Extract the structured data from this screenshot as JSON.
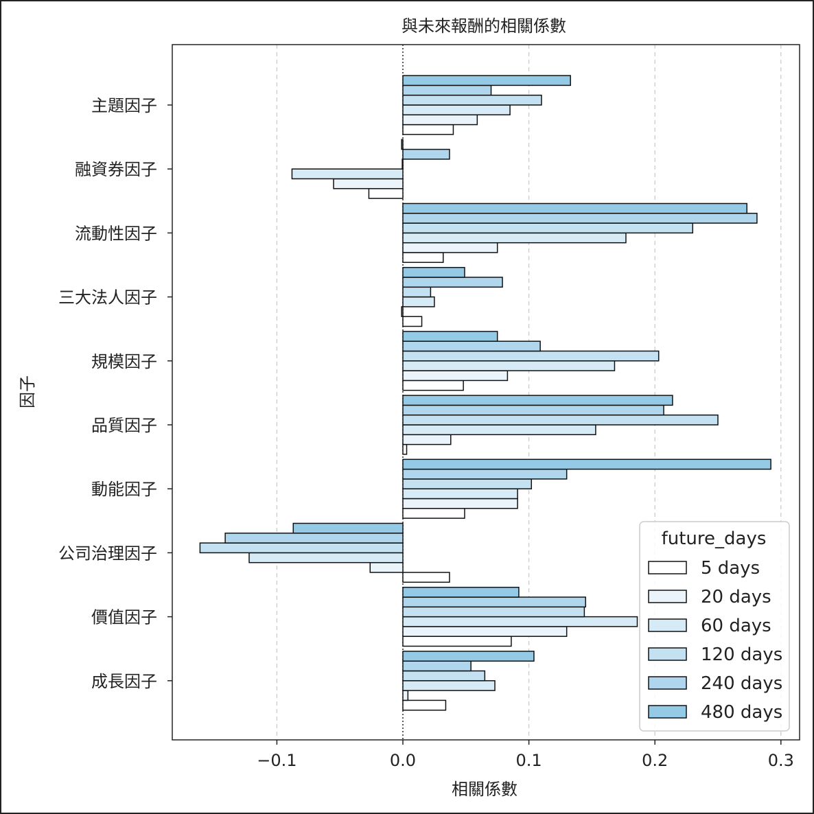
{
  "chart_data": {
    "type": "bar",
    "orientation": "horizontal",
    "title": "與未來報酬的相關係數",
    "xlabel": "相關係數",
    "ylabel": "因子",
    "xlim": [
      -0.2,
      0.315
    ],
    "xticks": [
      -0.1,
      0.0,
      0.1,
      0.2,
      0.3
    ],
    "xtick_labels": [
      "−0.1",
      "0.0",
      "0.1",
      "0.2",
      "0.3"
    ],
    "grid": "x, dashed",
    "legend_title": "future_days",
    "legend_position": "lower-right",
    "categories": [
      "主題因子",
      "融資券因子",
      "流動性因子",
      "三大法人因子",
      "規模因子",
      "品質因子",
      "動能因子",
      "公司治理因子",
      "價值因子",
      "成長因子"
    ],
    "series": [
      {
        "name": "5 days",
        "color": "#ffffff",
        "values": [
          0.04,
          -0.027,
          0.032,
          0.015,
          0.048,
          0.003,
          0.049,
          0.037,
          0.086,
          0.034
        ]
      },
      {
        "name": "20 days",
        "color": "#eaf4fa",
        "values": [
          0.059,
          -0.055,
          0.075,
          -0.001,
          0.083,
          0.038,
          0.091,
          -0.026,
          0.13,
          0.004
        ]
      },
      {
        "name": "60 days",
        "color": "#d7ebf6",
        "values": [
          0.085,
          -0.088,
          0.177,
          0.025,
          0.168,
          0.153,
          0.091,
          -0.122,
          0.186,
          0.073
        ]
      },
      {
        "name": "120 days",
        "color": "#c3e1f1",
        "values": [
          0.11,
          -0.0005,
          0.23,
          0.022,
          0.203,
          0.25,
          0.102,
          -0.161,
          0.144,
          0.065
        ]
      },
      {
        "name": "240 days",
        "color": "#afd6ec",
        "values": [
          0.07,
          0.037,
          0.281,
          0.079,
          0.109,
          0.207,
          0.13,
          -0.141,
          0.145,
          0.054
        ]
      },
      {
        "name": "480 days",
        "color": "#95cae6",
        "values": [
          0.133,
          -0.001,
          0.273,
          0.049,
          0.075,
          0.214,
          0.292,
          -0.087,
          0.092,
          0.104
        ]
      }
    ]
  }
}
